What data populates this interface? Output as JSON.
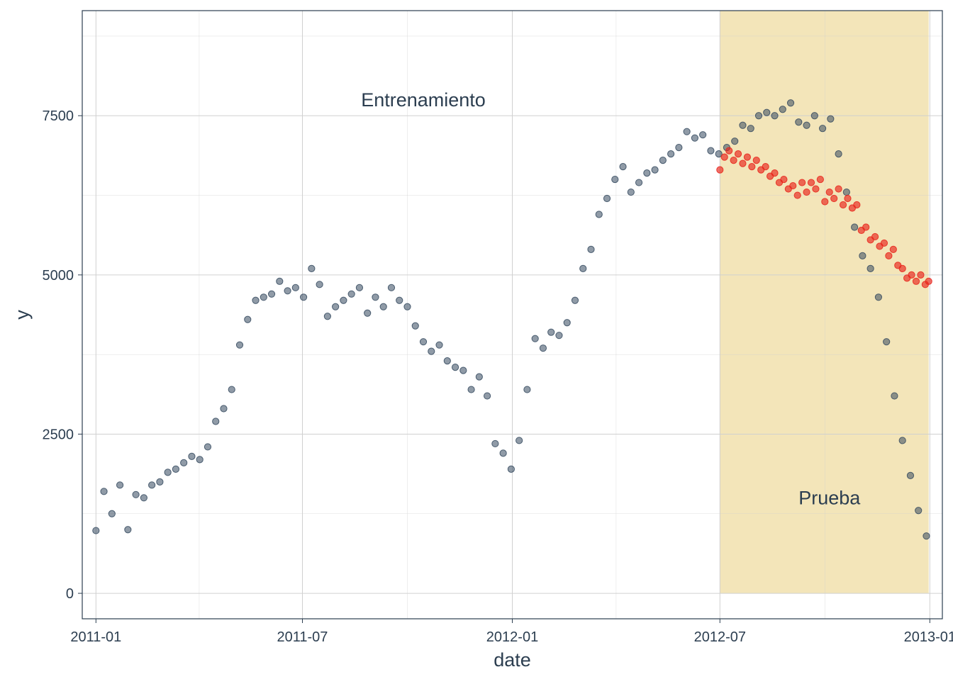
{
  "chart_data": {
    "type": "scatter",
    "title": "",
    "xlabel": "date",
    "ylabel": "y",
    "x_ticks": [
      "2011-01",
      "2011-07",
      "2012-01",
      "2012-07",
      "2013-01"
    ],
    "y_ticks": [
      "0",
      "2500",
      "5000",
      "7500"
    ],
    "xlim": [
      "2010-12-20",
      "2013-01-12"
    ],
    "ylim": [
      -400,
      9150
    ],
    "grid": true,
    "colors": {
      "train_points": "#34495e",
      "prediction_points": "#e8231a",
      "test_band": "#f3e5b9",
      "grid": "#d0d0d0",
      "text": "#2c3e50"
    },
    "annotations": [
      {
        "text": "Entrenamiento",
        "x": "2011-10-15",
        "y": 7750
      },
      {
        "text": "Prueba",
        "x": "2012-10-05",
        "y": 1500
      }
    ],
    "shaded_region": {
      "x_start": "2012-07-01",
      "x_end": "2012-12-31",
      "y_start": 0,
      "y_end": 9150
    },
    "series": [
      {
        "name": "",
        "role": "observed",
        "x": [
          "2011-01-01",
          "2011-01-08",
          "2011-01-15",
          "2011-01-22",
          "2011-01-29",
          "2011-02-05",
          "2011-02-12",
          "2011-02-19",
          "2011-02-26",
          "2011-03-05",
          "2011-03-12",
          "2011-03-19",
          "2011-03-26",
          "2011-04-02",
          "2011-04-09",
          "2011-04-16",
          "2011-04-23",
          "2011-04-30",
          "2011-05-07",
          "2011-05-14",
          "2011-05-21",
          "2011-05-28",
          "2011-06-04",
          "2011-06-11",
          "2011-06-18",
          "2011-06-25",
          "2011-07-02",
          "2011-07-09",
          "2011-07-16",
          "2011-07-23",
          "2011-07-30",
          "2011-08-06",
          "2011-08-13",
          "2011-08-20",
          "2011-08-27",
          "2011-09-03",
          "2011-09-10",
          "2011-09-17",
          "2011-09-24",
          "2011-10-01",
          "2011-10-08",
          "2011-10-15",
          "2011-10-22",
          "2011-10-29",
          "2011-11-05",
          "2011-11-12",
          "2011-11-19",
          "2011-11-26",
          "2011-12-03",
          "2011-12-10",
          "2011-12-17",
          "2011-12-24",
          "2011-12-31",
          "2012-01-07",
          "2012-01-14",
          "2012-01-21",
          "2012-01-28",
          "2012-02-04",
          "2012-02-11",
          "2012-02-18",
          "2012-02-25",
          "2012-03-03",
          "2012-03-10",
          "2012-03-17",
          "2012-03-24",
          "2012-03-31",
          "2012-04-07",
          "2012-04-14",
          "2012-04-21",
          "2012-04-28",
          "2012-05-05",
          "2012-05-12",
          "2012-05-19",
          "2012-05-26",
          "2012-06-02",
          "2012-06-09",
          "2012-06-16",
          "2012-06-23",
          "2012-06-30",
          "2012-07-07",
          "2012-07-14",
          "2012-07-21",
          "2012-07-28",
          "2012-08-04",
          "2012-08-11",
          "2012-08-18",
          "2012-08-25",
          "2012-09-01",
          "2012-09-08",
          "2012-09-15",
          "2012-09-22",
          "2012-09-29",
          "2012-10-06",
          "2012-10-13",
          "2012-10-20",
          "2012-10-27",
          "2012-11-03",
          "2012-11-10",
          "2012-11-17",
          "2012-11-24",
          "2012-12-01",
          "2012-12-08",
          "2012-12-15",
          "2012-12-22",
          "2012-12-29"
        ],
        "y": [
          985,
          1600,
          1250,
          1700,
          1000,
          1550,
          1500,
          1700,
          1750,
          1900,
          1950,
          2050,
          2150,
          2100,
          2300,
          2700,
          2900,
          3200,
          3900,
          4300,
          4600,
          4650,
          4700,
          4900,
          4750,
          4800,
          4650,
          5100,
          4850,
          4350,
          4500,
          4600,
          4700,
          4800,
          4400,
          4650,
          4500,
          4800,
          4600,
          4500,
          4200,
          3950,
          3800,
          3900,
          3650,
          3550,
          3500,
          3200,
          3400,
          3100,
          2350,
          2200,
          1950,
          2400,
          3200,
          4000,
          3850,
          4100,
          4050,
          4250,
          4600,
          5100,
          5400,
          5950,
          6200,
          6500,
          6700,
          6300,
          6450,
          6600,
          6650,
          6800,
          6900,
          7000,
          7250,
          7150,
          7200,
          6950,
          6900,
          7000,
          7100,
          7350,
          7300,
          7500,
          7550,
          7500,
          7600,
          7700,
          7400,
          7350,
          7500,
          7300,
          7450,
          6900,
          6300,
          5750,
          5300,
          5100,
          4650,
          3950,
          3100,
          2400,
          1850,
          1300,
          900
        ]
      },
      {
        "name": "",
        "role": "prediction",
        "x": [
          "2012-07-01",
          "2012-07-05",
          "2012-07-09",
          "2012-07-13",
          "2012-07-17",
          "2012-07-21",
          "2012-07-25",
          "2012-07-29",
          "2012-08-02",
          "2012-08-06",
          "2012-08-10",
          "2012-08-14",
          "2012-08-18",
          "2012-08-22",
          "2012-08-26",
          "2012-08-30",
          "2012-09-03",
          "2012-09-07",
          "2012-09-11",
          "2012-09-15",
          "2012-09-19",
          "2012-09-23",
          "2012-09-27",
          "2012-10-01",
          "2012-10-05",
          "2012-10-09",
          "2012-10-13",
          "2012-10-17",
          "2012-10-21",
          "2012-10-25",
          "2012-10-29",
          "2012-11-02",
          "2012-11-06",
          "2012-11-10",
          "2012-11-14",
          "2012-11-18",
          "2012-11-22",
          "2012-11-26",
          "2012-11-30",
          "2012-12-04",
          "2012-12-08",
          "2012-12-12",
          "2012-12-16",
          "2012-12-20",
          "2012-12-24",
          "2012-12-28",
          "2012-12-31"
        ],
        "y": [
          6650,
          6850,
          6950,
          6800,
          6900,
          6750,
          6850,
          6700,
          6800,
          6650,
          6700,
          6550,
          6600,
          6450,
          6500,
          6350,
          6400,
          6250,
          6450,
          6300,
          6450,
          6350,
          6500,
          6150,
          6300,
          6200,
          6350,
          6100,
          6200,
          6050,
          6100,
          5700,
          5750,
          5550,
          5600,
          5450,
          5500,
          5300,
          5400,
          5150,
          5100,
          4950,
          5000,
          4900,
          5000,
          4850,
          4900
        ]
      }
    ]
  }
}
